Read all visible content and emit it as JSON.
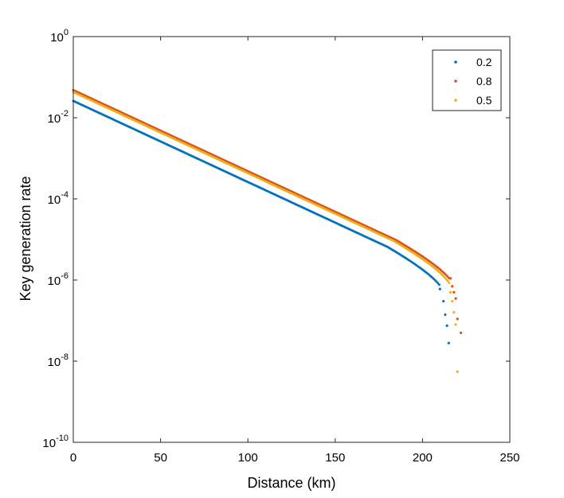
{
  "chart_data": {
    "type": "scatter",
    "title": "",
    "xlabel": "Distance (km)",
    "ylabel": "Key generation rate",
    "xlim": [
      0,
      250
    ],
    "ylim_exponent": [
      -10,
      0
    ],
    "y_scale": "log",
    "x_ticks": [
      "0",
      "50",
      "100",
      "150",
      "200",
      "250"
    ],
    "y_ticks": [
      {
        "base": "10",
        "exp": "0"
      },
      {
        "base": "10",
        "exp": "-2"
      },
      {
        "base": "10",
        "exp": "-4"
      },
      {
        "base": "10",
        "exp": "-6"
      },
      {
        "base": "10",
        "exp": "-8"
      },
      {
        "base": "10",
        "exp": "-10"
      }
    ],
    "grid": false,
    "legend_position": "top-right",
    "series": [
      {
        "name": "0.2",
        "color": "#0072BD",
        "log_slope": -0.02,
        "y0": 0.026,
        "cutoff_km": 216,
        "points": [
          [
            210,
            6e-07
          ],
          [
            212,
            3e-07
          ],
          [
            213,
            1.4e-07
          ],
          [
            214,
            7.5e-08
          ],
          [
            215,
            2.8e-08
          ]
        ]
      },
      {
        "name": "0.8",
        "color": "#D95319",
        "log_slope": -0.02,
        "y0": 0.048,
        "cutoff_km": 222,
        "points": [
          [
            216,
            1.1e-06
          ],
          [
            217,
            7e-07
          ],
          [
            218,
            5e-07
          ],
          [
            219,
            3.5e-07
          ],
          [
            220,
            1.1e-07
          ],
          [
            222,
            5e-08
          ]
        ]
      },
      {
        "name": "0.5",
        "color": "#EDB120",
        "log_slope": -0.02,
        "y0": 0.043,
        "cutoff_km": 220,
        "points": [
          [
            216,
            5e-07
          ],
          [
            217,
            3e-07
          ],
          [
            218,
            1.6e-07
          ],
          [
            219,
            8e-08
          ],
          [
            220,
            5.5e-09
          ]
        ]
      }
    ]
  }
}
